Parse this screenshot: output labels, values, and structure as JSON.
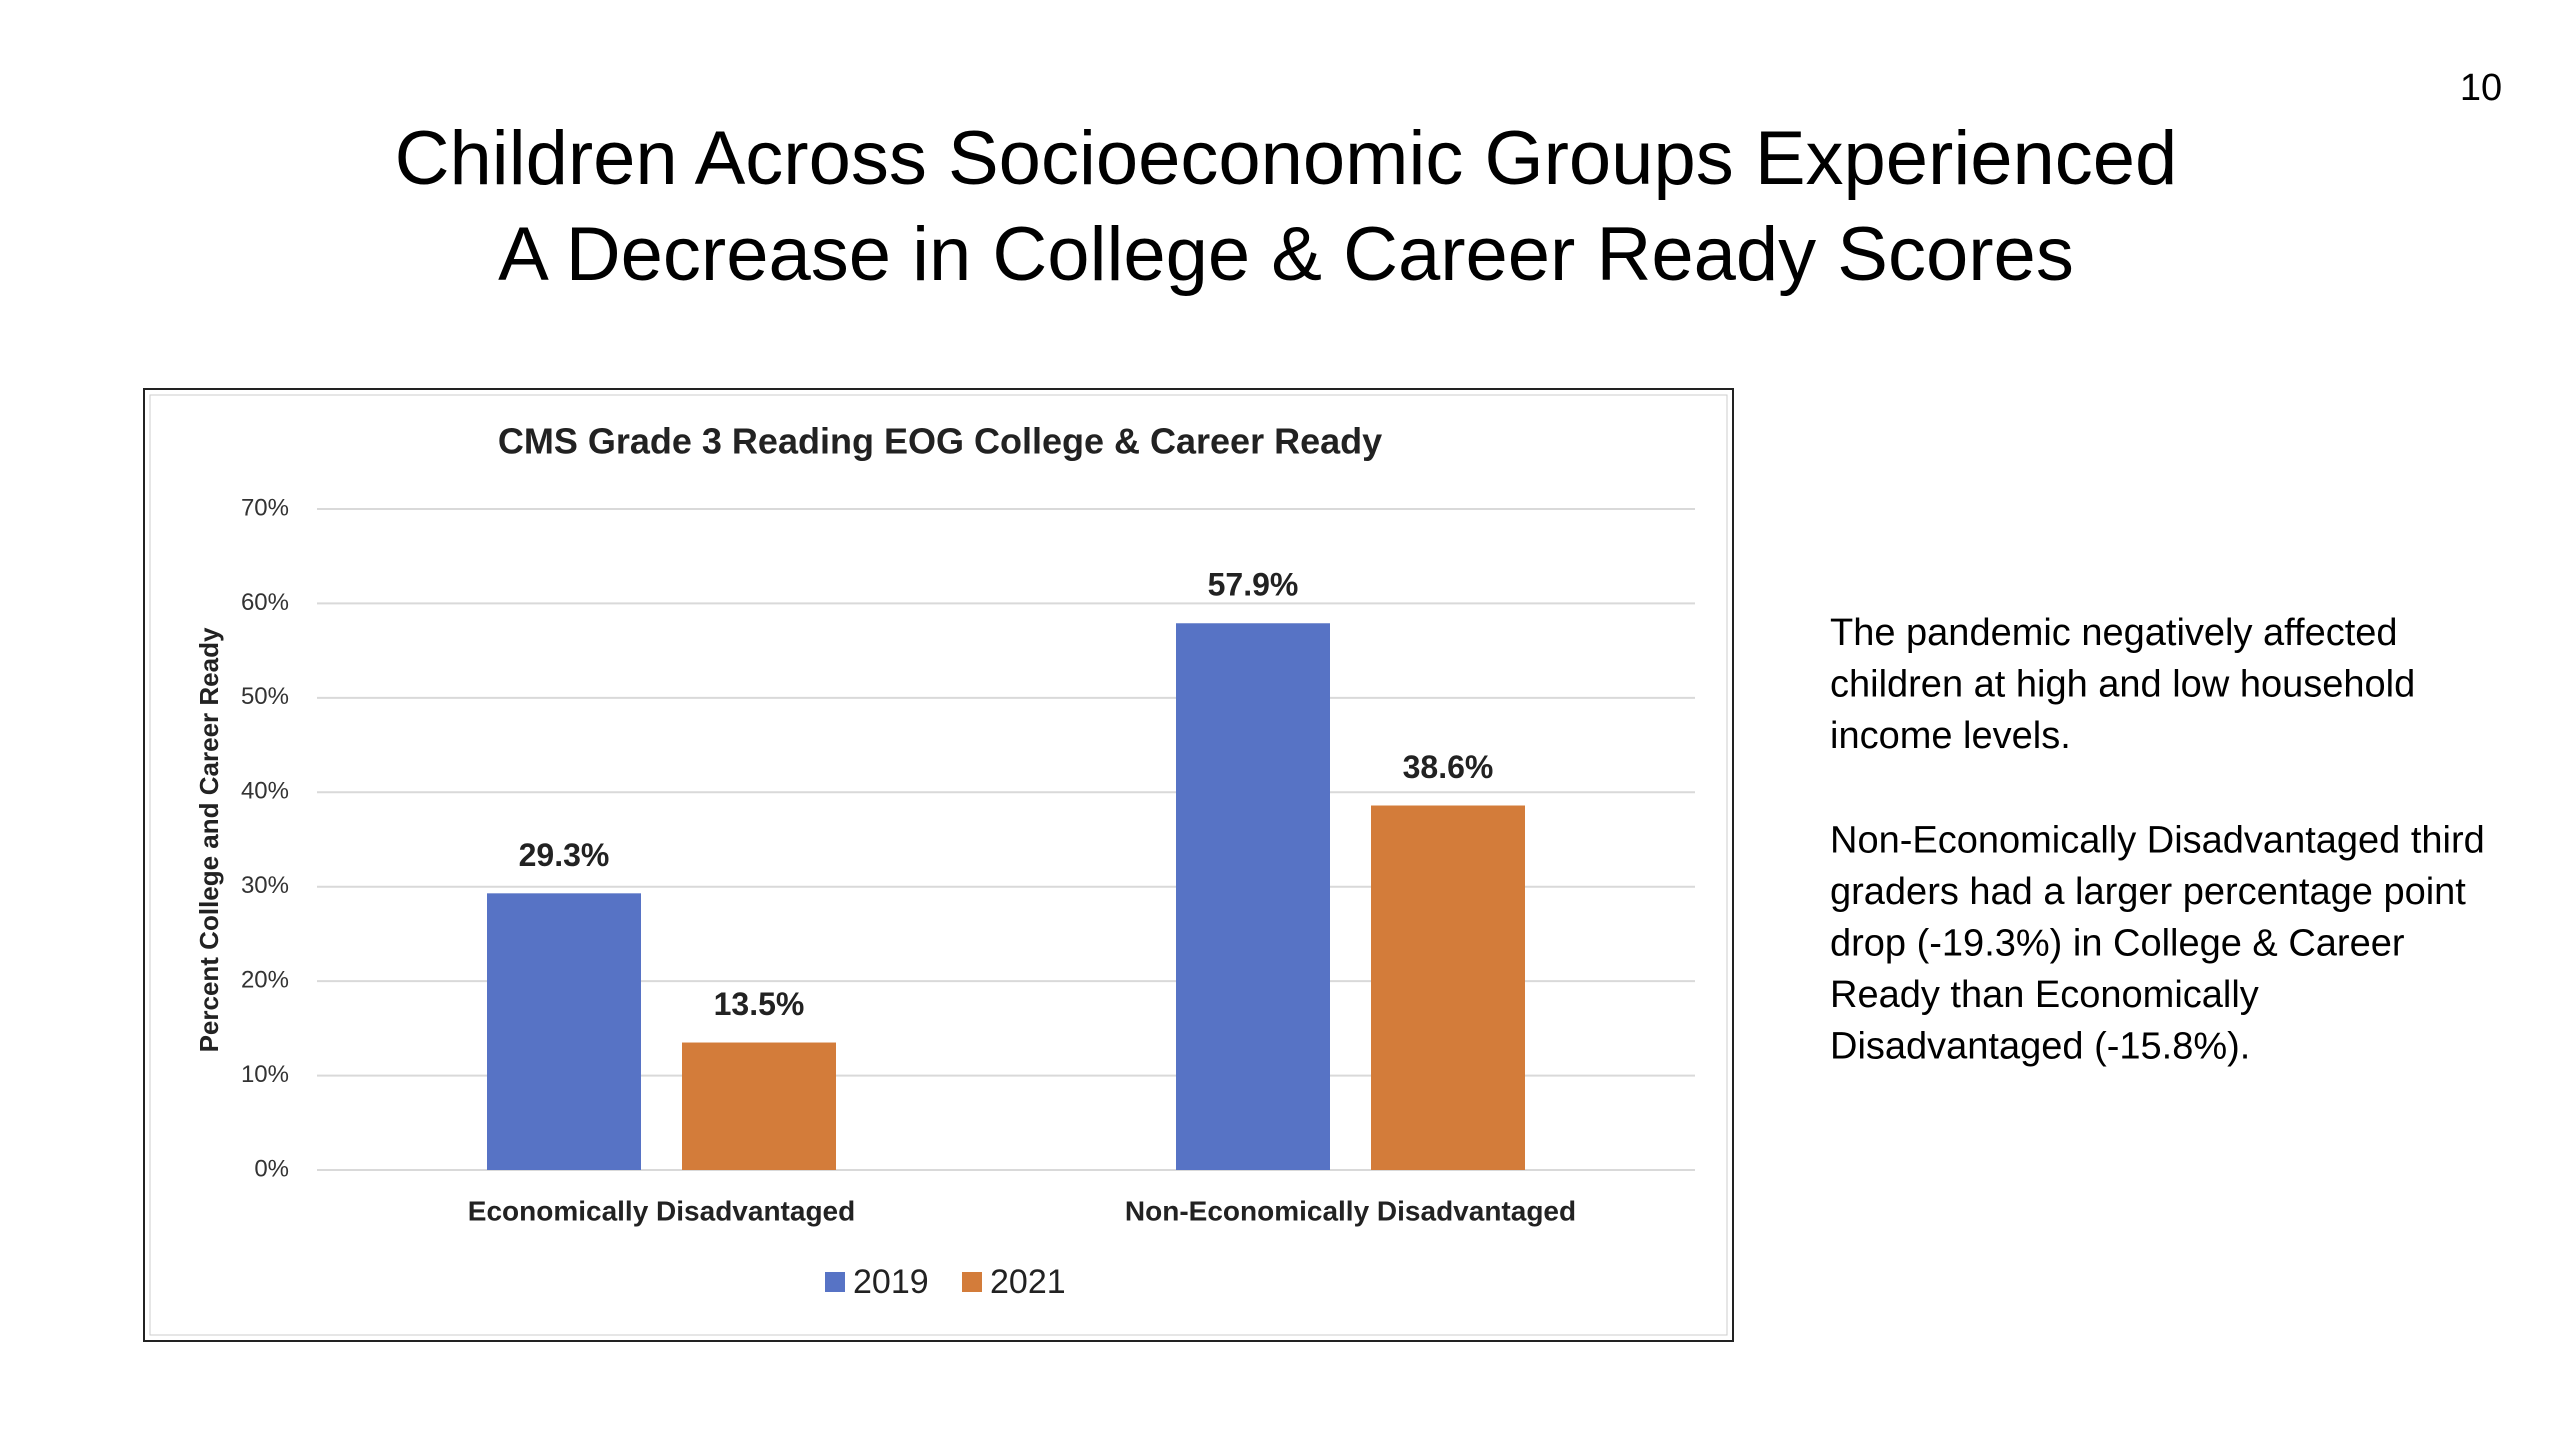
{
  "slide": {
    "page_number": "10",
    "title": [
      "Children Across Socioeconomic Groups Experienced",
      "A Decrease in College & Career Ready Scores"
    ],
    "text": [
      [
        "The pandemic negatively affected",
        "children at high and low household",
        "income levels."
      ],
      [
        "Non-Economically Disadvantaged third",
        "graders had a larger percentage point",
        "drop (-19.3%) in College & Career",
        "Ready than Economically",
        "Disadvantaged (-15.8%)."
      ]
    ]
  },
  "chart_data": {
    "type": "bar",
    "title": "CMS Grade 3 Reading EOG College & Career Ready",
    "ylabel": "Percent College and Career Ready",
    "categories": [
      "Economically Disadvantaged",
      "Non-Economically Disadvantaged"
    ],
    "series": [
      {
        "name": "2019",
        "color": "#5773c5",
        "values": [
          29.3,
          57.9
        ],
        "value_labels": [
          "29.3%",
          "57.9%"
        ]
      },
      {
        "name": "2021",
        "color": "#d37c3a",
        "values": [
          13.5,
          38.6
        ],
        "value_labels": [
          "13.5%",
          "38.6%"
        ]
      }
    ],
    "ylim": [
      0,
      70
    ],
    "yticks": [
      {
        "value": 0,
        "label": "0%"
      },
      {
        "value": 10,
        "label": "10%"
      },
      {
        "value": 20,
        "label": "20%"
      },
      {
        "value": 30,
        "label": "30%"
      },
      {
        "value": 40,
        "label": "40%"
      },
      {
        "value": 50,
        "label": "50%"
      },
      {
        "value": 60,
        "label": "60%"
      },
      {
        "value": 70,
        "label": "70%"
      }
    ],
    "grid": true,
    "legend": "bottom"
  }
}
